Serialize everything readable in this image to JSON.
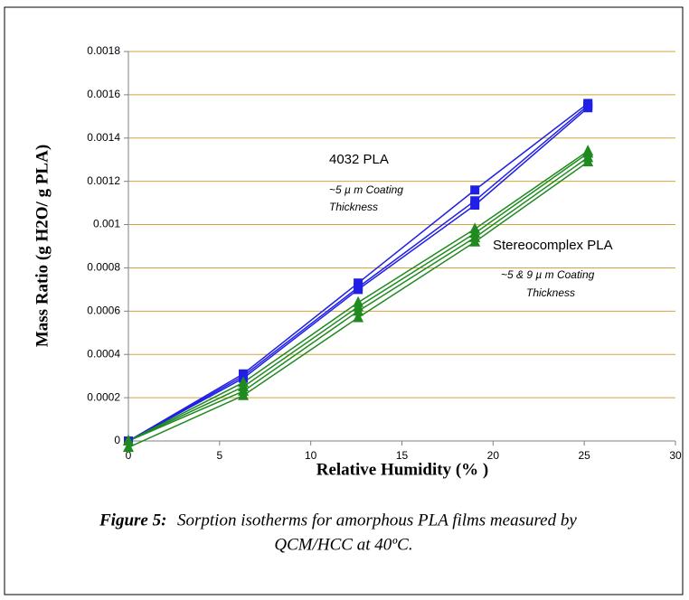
{
  "chart_data": {
    "type": "line",
    "x_label": "Relative Humidity (% )",
    "y_label": "Mass Ratio (g H2O/ g PLA)",
    "x": [
      0,
      6.3,
      12.6,
      19,
      25.2
    ],
    "xlim": [
      0,
      30
    ],
    "xticks": [
      0,
      5,
      10,
      15,
      20,
      25,
      30
    ],
    "ylim": [
      0,
      0.0018
    ],
    "yticks": [
      0,
      0.0002,
      0.0004,
      0.0006,
      0.0008,
      0.001,
      0.0012,
      0.0014,
      0.0016,
      0.0018
    ],
    "grid": true,
    "grid_color": "#d4a43a",
    "series": [
      {
        "color": "#1f1fe6",
        "marker": "square",
        "values": [
          0,
          0.00031,
          0.00073,
          0.00116,
          0.00156
        ]
      },
      {
        "color": "#1f1fe6",
        "marker": "square",
        "values": [
          0,
          0.0003,
          0.00071,
          0.00111,
          0.00155
        ]
      },
      {
        "color": "#1f1fe6",
        "marker": "square",
        "values": [
          0,
          0.00029,
          0.0007,
          0.00109,
          0.00154
        ]
      },
      {
        "color": "#1f8a1f",
        "marker": "triangle",
        "values": [
          0,
          0.00027,
          0.00064,
          0.00098,
          0.00134
        ]
      },
      {
        "color": "#1f8a1f",
        "marker": "triangle",
        "values": [
          0,
          0.00025,
          0.00062,
          0.00096,
          0.00133
        ]
      },
      {
        "color": "#1f8a1f",
        "marker": "triangle",
        "values": [
          0,
          0.00023,
          0.0006,
          0.00094,
          0.00131
        ]
      },
      {
        "color": "#1f8a1f",
        "marker": "triangle",
        "values": [
          -3e-05,
          0.00021,
          0.00057,
          0.00092,
          0.00129
        ]
      }
    ],
    "annotations": [
      {
        "text": "4032 PLA",
        "color": "#1f1fe6"
      },
      {
        "text": "~5  µ m Coating",
        "color": "#1f1fe6"
      },
      {
        "text": "Thickness",
        "color": "#1f1fe6"
      },
      {
        "text": "Stereocomplex PLA",
        "color": "#1f8a1f"
      },
      {
        "text": "~5 & 9  µ m Coating",
        "color": "#1f8a1f"
      },
      {
        "text": "Thickness",
        "color": "#1f8a1f"
      }
    ],
    "figure_label": "Figure 5:",
    "caption": [
      "Sorption isotherms for amorphous PLA films measured by",
      "QCM/HCC at 40ºC."
    ]
  }
}
